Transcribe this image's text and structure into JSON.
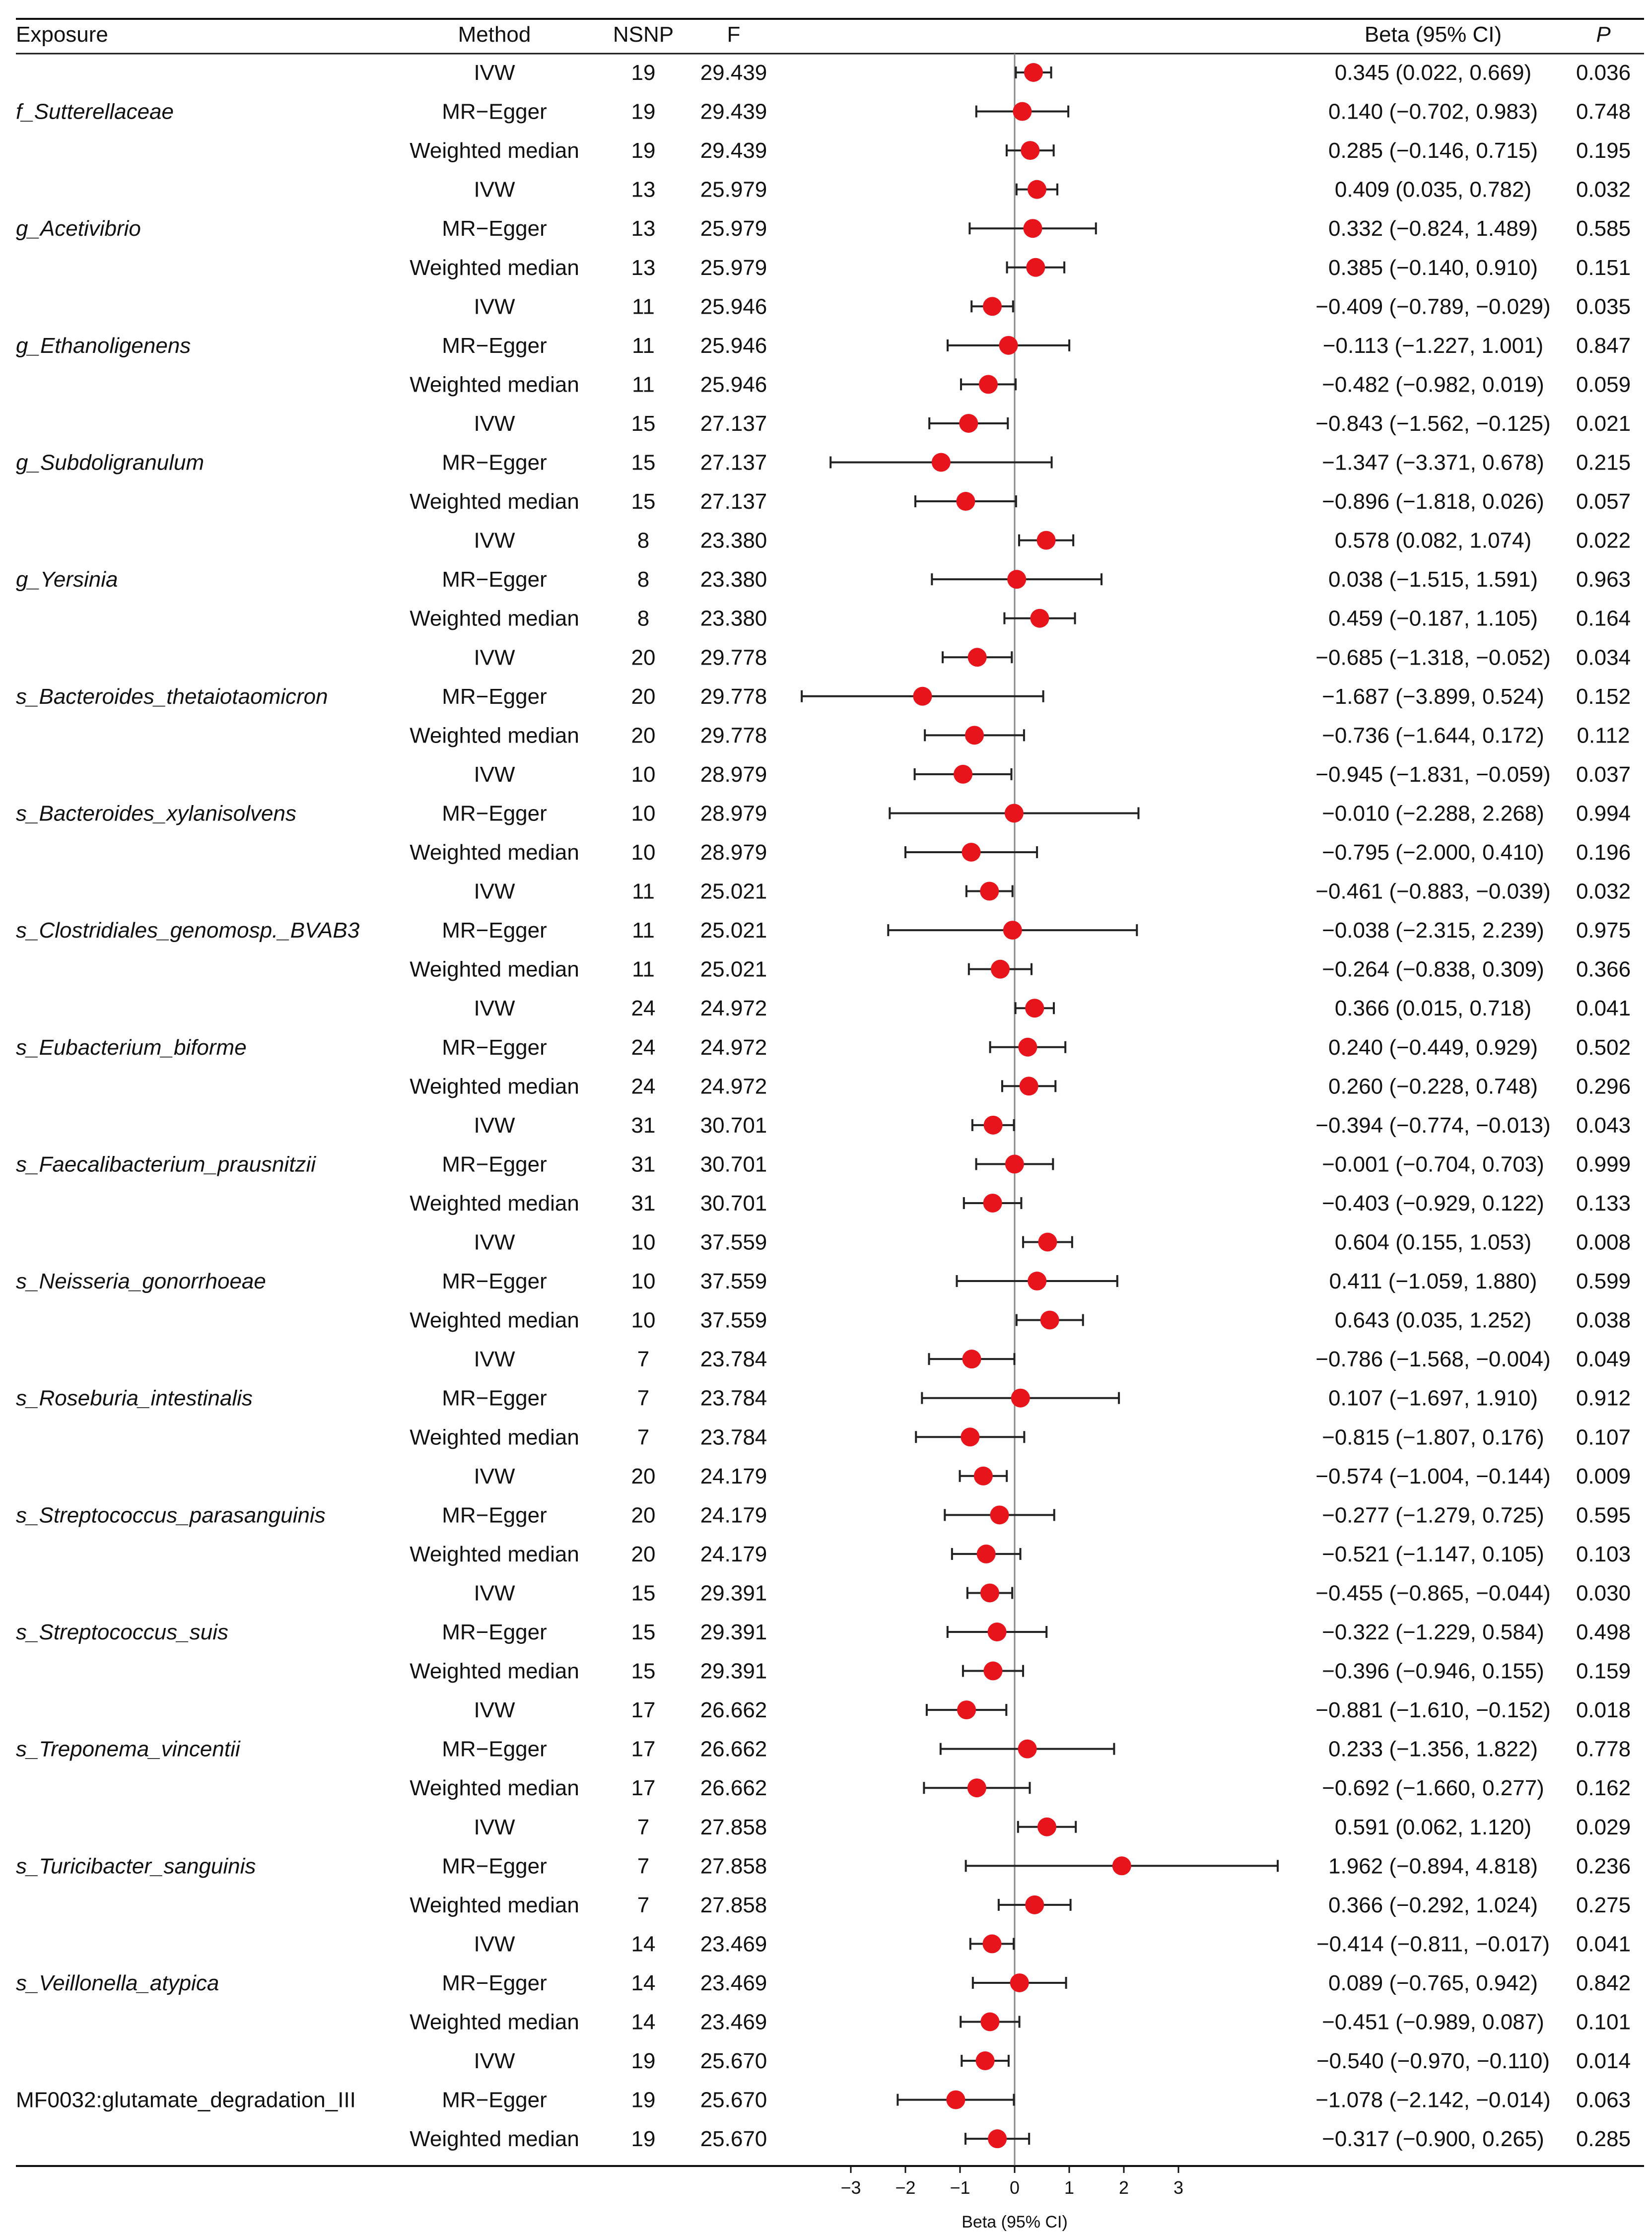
{
  "chart_data": {
    "type": "forest",
    "xlabel": "Beta (95% CI)",
    "xlim": [
      -4,
      5
    ],
    "xticks": [
      -3,
      -2,
      -1,
      0,
      1,
      2,
      3
    ],
    "reference_line": 0,
    "point_color": "#e8141b",
    "headers": {
      "exposure": "Exposure",
      "method": "Method",
      "nsnp": "NSNP",
      "f": "F",
      "beta_ci": "Beta (95% CI)",
      "p": "P"
    },
    "groups": [
      {
        "exposure": "f_Sutterellaceae",
        "italic": true,
        "rows": [
          {
            "method": "IVW",
            "nsnp": "19",
            "f": "29.439",
            "beta": 0.345,
            "lower": 0.022,
            "upper": 0.669,
            "ci_text": "0.345 (0.022, 0.669)",
            "p": "0.036"
          },
          {
            "method": "MR−Egger",
            "nsnp": "19",
            "f": "29.439",
            "beta": 0.14,
            "lower": -0.702,
            "upper": 0.983,
            "ci_text": "0.140 (−0.702, 0.983)",
            "p": "0.748"
          },
          {
            "method": "Weighted median",
            "nsnp": "19",
            "f": "29.439",
            "beta": 0.285,
            "lower": -0.146,
            "upper": 0.715,
            "ci_text": "0.285 (−0.146, 0.715)",
            "p": "0.195"
          }
        ]
      },
      {
        "exposure": "g_Acetivibrio",
        "italic": true,
        "rows": [
          {
            "method": "IVW",
            "nsnp": "13",
            "f": "25.979",
            "beta": 0.409,
            "lower": 0.035,
            "upper": 0.782,
            "ci_text": "0.409 (0.035, 0.782)",
            "p": "0.032"
          },
          {
            "method": "MR−Egger",
            "nsnp": "13",
            "f": "25.979",
            "beta": 0.332,
            "lower": -0.824,
            "upper": 1.489,
            "ci_text": "0.332 (−0.824, 1.489)",
            "p": "0.585"
          },
          {
            "method": "Weighted median",
            "nsnp": "13",
            "f": "25.979",
            "beta": 0.385,
            "lower": -0.14,
            "upper": 0.91,
            "ci_text": "0.385 (−0.140, 0.910)",
            "p": "0.151"
          }
        ]
      },
      {
        "exposure": "g_Ethanoligenens",
        "italic": true,
        "rows": [
          {
            "method": "IVW",
            "nsnp": "11",
            "f": "25.946",
            "beta": -0.409,
            "lower": -0.789,
            "upper": -0.029,
            "ci_text": "−0.409 (−0.789, −0.029)",
            "p": "0.035"
          },
          {
            "method": "MR−Egger",
            "nsnp": "11",
            "f": "25.946",
            "beta": -0.113,
            "lower": -1.227,
            "upper": 1.001,
            "ci_text": "−0.113 (−1.227, 1.001)",
            "p": "0.847"
          },
          {
            "method": "Weighted median",
            "nsnp": "11",
            "f": "25.946",
            "beta": -0.482,
            "lower": -0.982,
            "upper": 0.019,
            "ci_text": "−0.482 (−0.982, 0.019)",
            "p": "0.059"
          }
        ]
      },
      {
        "exposure": "g_Subdoligranulum",
        "italic": true,
        "rows": [
          {
            "method": "IVW",
            "nsnp": "15",
            "f": "27.137",
            "beta": -0.843,
            "lower": -1.562,
            "upper": -0.125,
            "ci_text": "−0.843 (−1.562, −0.125)",
            "p": "0.021"
          },
          {
            "method": "MR−Egger",
            "nsnp": "15",
            "f": "27.137",
            "beta": -1.347,
            "lower": -3.371,
            "upper": 0.678,
            "ci_text": "−1.347 (−3.371, 0.678)",
            "p": "0.215"
          },
          {
            "method": "Weighted median",
            "nsnp": "15",
            "f": "27.137",
            "beta": -0.896,
            "lower": -1.818,
            "upper": 0.026,
            "ci_text": "−0.896 (−1.818, 0.026)",
            "p": "0.057"
          }
        ]
      },
      {
        "exposure": "g_Yersinia",
        "italic": true,
        "rows": [
          {
            "method": "IVW",
            "nsnp": "8",
            "f": "23.380",
            "beta": 0.578,
            "lower": 0.082,
            "upper": 1.074,
            "ci_text": "0.578 (0.082, 1.074)",
            "p": "0.022"
          },
          {
            "method": "MR−Egger",
            "nsnp": "8",
            "f": "23.380",
            "beta": 0.038,
            "lower": -1.515,
            "upper": 1.591,
            "ci_text": "0.038 (−1.515, 1.591)",
            "p": "0.963"
          },
          {
            "method": "Weighted median",
            "nsnp": "8",
            "f": "23.380",
            "beta": 0.459,
            "lower": -0.187,
            "upper": 1.105,
            "ci_text": "0.459 (−0.187, 1.105)",
            "p": "0.164"
          }
        ]
      },
      {
        "exposure": "s_Bacteroides_thetaiotaomicron",
        "italic": true,
        "rows": [
          {
            "method": "IVW",
            "nsnp": "20",
            "f": "29.778",
            "beta": -0.685,
            "lower": -1.318,
            "upper": -0.052,
            "ci_text": "−0.685 (−1.318, −0.052)",
            "p": "0.034"
          },
          {
            "method": "MR−Egger",
            "nsnp": "20",
            "f": "29.778",
            "beta": -1.687,
            "lower": -3.899,
            "upper": 0.524,
            "ci_text": "−1.687 (−3.899, 0.524)",
            "p": "0.152"
          },
          {
            "method": "Weighted median",
            "nsnp": "20",
            "f": "29.778",
            "beta": -0.736,
            "lower": -1.644,
            "upper": 0.172,
            "ci_text": "−0.736 (−1.644, 0.172)",
            "p": "0.112"
          }
        ]
      },
      {
        "exposure": "s_Bacteroides_xylanisolvens",
        "italic": true,
        "rows": [
          {
            "method": "IVW",
            "nsnp": "10",
            "f": "28.979",
            "beta": -0.945,
            "lower": -1.831,
            "upper": -0.059,
            "ci_text": "−0.945 (−1.831, −0.059)",
            "p": "0.037"
          },
          {
            "method": "MR−Egger",
            "nsnp": "10",
            "f": "28.979",
            "beta": -0.01,
            "lower": -2.288,
            "upper": 2.268,
            "ci_text": "−0.010 (−2.288, 2.268)",
            "p": "0.994"
          },
          {
            "method": "Weighted median",
            "nsnp": "10",
            "f": "28.979",
            "beta": -0.795,
            "lower": -2.0,
            "upper": 0.41,
            "ci_text": "−0.795 (−2.000, 0.410)",
            "p": "0.196"
          }
        ]
      },
      {
        "exposure": "s_Clostridiales_genomosp._BVAB3",
        "italic": true,
        "rows": [
          {
            "method": "IVW",
            "nsnp": "11",
            "f": "25.021",
            "beta": -0.461,
            "lower": -0.883,
            "upper": -0.039,
            "ci_text": "−0.461 (−0.883, −0.039)",
            "p": "0.032"
          },
          {
            "method": "MR−Egger",
            "nsnp": "11",
            "f": "25.021",
            "beta": -0.038,
            "lower": -2.315,
            "upper": 2.239,
            "ci_text": "−0.038 (−2.315, 2.239)",
            "p": "0.975"
          },
          {
            "method": "Weighted median",
            "nsnp": "11",
            "f": "25.021",
            "beta": -0.264,
            "lower": -0.838,
            "upper": 0.309,
            "ci_text": "−0.264 (−0.838, 0.309)",
            "p": "0.366"
          }
        ]
      },
      {
        "exposure": "s_Eubacterium_biforme",
        "italic": true,
        "rows": [
          {
            "method": "IVW",
            "nsnp": "24",
            "f": "24.972",
            "beta": 0.366,
            "lower": 0.015,
            "upper": 0.718,
            "ci_text": "0.366 (0.015, 0.718)",
            "p": "0.041"
          },
          {
            "method": "MR−Egger",
            "nsnp": "24",
            "f": "24.972",
            "beta": 0.24,
            "lower": -0.449,
            "upper": 0.929,
            "ci_text": "0.240 (−0.449, 0.929)",
            "p": "0.502"
          },
          {
            "method": "Weighted median",
            "nsnp": "24",
            "f": "24.972",
            "beta": 0.26,
            "lower": -0.228,
            "upper": 0.748,
            "ci_text": "0.260 (−0.228, 0.748)",
            "p": "0.296"
          }
        ]
      },
      {
        "exposure": "s_Faecalibacterium_prausnitzii",
        "italic": true,
        "rows": [
          {
            "method": "IVW",
            "nsnp": "31",
            "f": "30.701",
            "beta": -0.394,
            "lower": -0.774,
            "upper": -0.013,
            "ci_text": "−0.394 (−0.774, −0.013)",
            "p": "0.043"
          },
          {
            "method": "MR−Egger",
            "nsnp": "31",
            "f": "30.701",
            "beta": -0.001,
            "lower": -0.704,
            "upper": 0.703,
            "ci_text": "−0.001 (−0.704, 0.703)",
            "p": "0.999"
          },
          {
            "method": "Weighted median",
            "nsnp": "31",
            "f": "30.701",
            "beta": -0.403,
            "lower": -0.929,
            "upper": 0.122,
            "ci_text": "−0.403 (−0.929, 0.122)",
            "p": "0.133"
          }
        ]
      },
      {
        "exposure": "s_Neisseria_gonorrhoeae",
        "italic": true,
        "rows": [
          {
            "method": "IVW",
            "nsnp": "10",
            "f": "37.559",
            "beta": 0.604,
            "lower": 0.155,
            "upper": 1.053,
            "ci_text": "0.604 (0.155, 1.053)",
            "p": "0.008"
          },
          {
            "method": "MR−Egger",
            "nsnp": "10",
            "f": "37.559",
            "beta": 0.411,
            "lower": -1.059,
            "upper": 1.88,
            "ci_text": "0.411 (−1.059, 1.880)",
            "p": "0.599"
          },
          {
            "method": "Weighted median",
            "nsnp": "10",
            "f": "37.559",
            "beta": 0.643,
            "lower": 0.035,
            "upper": 1.252,
            "ci_text": "0.643 (0.035, 1.252)",
            "p": "0.038"
          }
        ]
      },
      {
        "exposure": "s_Roseburia_intestinalis",
        "italic": true,
        "rows": [
          {
            "method": "IVW",
            "nsnp": "7",
            "f": "23.784",
            "beta": -0.786,
            "lower": -1.568,
            "upper": -0.004,
            "ci_text": "−0.786 (−1.568, −0.004)",
            "p": "0.049"
          },
          {
            "method": "MR−Egger",
            "nsnp": "7",
            "f": "23.784",
            "beta": 0.107,
            "lower": -1.697,
            "upper": 1.91,
            "ci_text": "0.107 (−1.697, 1.910)",
            "p": "0.912"
          },
          {
            "method": "Weighted median",
            "nsnp": "7",
            "f": "23.784",
            "beta": -0.815,
            "lower": -1.807,
            "upper": 0.176,
            "ci_text": "−0.815 (−1.807, 0.176)",
            "p": "0.107"
          }
        ]
      },
      {
        "exposure": "s_Streptococcus_parasanguinis",
        "italic": true,
        "rows": [
          {
            "method": "IVW",
            "nsnp": "20",
            "f": "24.179",
            "beta": -0.574,
            "lower": -1.004,
            "upper": -0.144,
            "ci_text": "−0.574 (−1.004, −0.144)",
            "p": "0.009"
          },
          {
            "method": "MR−Egger",
            "nsnp": "20",
            "f": "24.179",
            "beta": -0.277,
            "lower": -1.279,
            "upper": 0.725,
            "ci_text": "−0.277 (−1.279, 0.725)",
            "p": "0.595"
          },
          {
            "method": "Weighted median",
            "nsnp": "20",
            "f": "24.179",
            "beta": -0.521,
            "lower": -1.147,
            "upper": 0.105,
            "ci_text": "−0.521 (−1.147, 0.105)",
            "p": "0.103"
          }
        ]
      },
      {
        "exposure": "s_Streptococcus_suis",
        "italic": true,
        "rows": [
          {
            "method": "IVW",
            "nsnp": "15",
            "f": "29.391",
            "beta": -0.455,
            "lower": -0.865,
            "upper": -0.044,
            "ci_text": "−0.455 (−0.865, −0.044)",
            "p": "0.030"
          },
          {
            "method": "MR−Egger",
            "nsnp": "15",
            "f": "29.391",
            "beta": -0.322,
            "lower": -1.229,
            "upper": 0.584,
            "ci_text": "−0.322 (−1.229, 0.584)",
            "p": "0.498"
          },
          {
            "method": "Weighted median",
            "nsnp": "15",
            "f": "29.391",
            "beta": -0.396,
            "lower": -0.946,
            "upper": 0.155,
            "ci_text": "−0.396 (−0.946, 0.155)",
            "p": "0.159"
          }
        ]
      },
      {
        "exposure": "s_Treponema_vincentii",
        "italic": true,
        "rows": [
          {
            "method": "IVW",
            "nsnp": "17",
            "f": "26.662",
            "beta": -0.881,
            "lower": -1.61,
            "upper": -0.152,
            "ci_text": "−0.881 (−1.610, −0.152)",
            "p": "0.018"
          },
          {
            "method": "MR−Egger",
            "nsnp": "17",
            "f": "26.662",
            "beta": 0.233,
            "lower": -1.356,
            "upper": 1.822,
            "ci_text": "0.233 (−1.356, 1.822)",
            "p": "0.778"
          },
          {
            "method": "Weighted median",
            "nsnp": "17",
            "f": "26.662",
            "beta": -0.692,
            "lower": -1.66,
            "upper": 0.277,
            "ci_text": "−0.692 (−1.660, 0.277)",
            "p": "0.162"
          }
        ]
      },
      {
        "exposure": "s_Turicibacter_sanguinis",
        "italic": true,
        "rows": [
          {
            "method": "IVW",
            "nsnp": "7",
            "f": "27.858",
            "beta": 0.591,
            "lower": 0.062,
            "upper": 1.12,
            "ci_text": "0.591 (0.062, 1.120)",
            "p": "0.029"
          },
          {
            "method": "MR−Egger",
            "nsnp": "7",
            "f": "27.858",
            "beta": 1.962,
            "lower": -0.894,
            "upper": 4.818,
            "ci_text": "1.962 (−0.894, 4.818)",
            "p": "0.236"
          },
          {
            "method": "Weighted median",
            "nsnp": "7",
            "f": "27.858",
            "beta": 0.366,
            "lower": -0.292,
            "upper": 1.024,
            "ci_text": "0.366 (−0.292, 1.024)",
            "p": "0.275"
          }
        ]
      },
      {
        "exposure": "s_Veillonella_atypica",
        "italic": true,
        "rows": [
          {
            "method": "IVW",
            "nsnp": "14",
            "f": "23.469",
            "beta": -0.414,
            "lower": -0.811,
            "upper": -0.017,
            "ci_text": "−0.414 (−0.811, −0.017)",
            "p": "0.041"
          },
          {
            "method": "MR−Egger",
            "nsnp": "14",
            "f": "23.469",
            "beta": 0.089,
            "lower": -0.765,
            "upper": 0.942,
            "ci_text": "0.089 (−0.765, 0.942)",
            "p": "0.842"
          },
          {
            "method": "Weighted median",
            "nsnp": "14",
            "f": "23.469",
            "beta": -0.451,
            "lower": -0.989,
            "upper": 0.087,
            "ci_text": "−0.451 (−0.989, 0.087)",
            "p": "0.101"
          }
        ]
      },
      {
        "exposure": "MF0032:glutamate_degradation_III",
        "italic": false,
        "rows": [
          {
            "method": "IVW",
            "nsnp": "19",
            "f": "25.670",
            "beta": -0.54,
            "lower": -0.97,
            "upper": -0.11,
            "ci_text": "−0.540 (−0.970, −0.110)",
            "p": "0.014"
          },
          {
            "method": "MR−Egger",
            "nsnp": "19",
            "f": "25.670",
            "beta": -1.078,
            "lower": -2.142,
            "upper": -0.014,
            "ci_text": "−1.078 (−2.142, −0.014)",
            "p": "0.063"
          },
          {
            "method": "Weighted median",
            "nsnp": "19",
            "f": "25.670",
            "beta": -0.317,
            "lower": -0.9,
            "upper": 0.265,
            "ci_text": "−0.317 (−0.900, 0.265)",
            "p": "0.285"
          }
        ]
      }
    ]
  }
}
